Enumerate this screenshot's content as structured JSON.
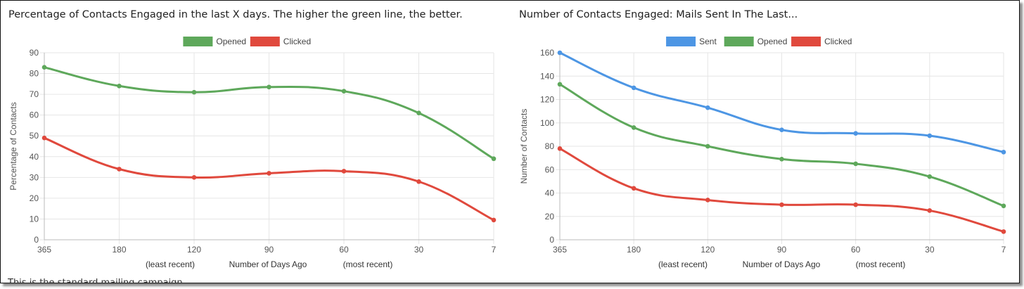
{
  "colors": {
    "sent": "#4d96e4",
    "opened": "#5ea85b",
    "clicked": "#e0493d",
    "grid": "#e6e6e6",
    "axis": "#444444"
  },
  "footnote": "This is the standard mailing campaign...",
  "chart_data": [
    {
      "type": "line",
      "title": "Percentage of Contacts Engaged in the last X days. The higher the green line, the better.",
      "categories": [
        "365",
        "180",
        "120",
        "90",
        "60",
        "30",
        "7"
      ],
      "ylabel": "Percentage of Contacts",
      "xlabel": "Number of Days Ago",
      "xlabel_left": "(least recent)",
      "xlabel_right": "(most recent)",
      "ylim": [
        0,
        90
      ],
      "ystep": 10,
      "grid": true,
      "legend_position": "top-center",
      "series": [
        {
          "name": "Opened",
          "color_key": "opened",
          "values": [
            83,
            74,
            71,
            73.5,
            71.5,
            61,
            39
          ]
        },
        {
          "name": "Clicked",
          "color_key": "clicked",
          "values": [
            49,
            34,
            30,
            32,
            33,
            28,
            9.5
          ]
        }
      ]
    },
    {
      "type": "line",
      "title": "Number of Contacts Engaged: Mails Sent In The Last...",
      "categories": [
        "365",
        "180",
        "120",
        "90",
        "60",
        "30",
        "7"
      ],
      "ylabel": "Number of Contacts",
      "xlabel": "Number of Days Ago",
      "xlabel_left": "(least recent)",
      "xlabel_right": "(most recent)",
      "ylim": [
        0,
        160
      ],
      "ystep": 20,
      "grid": true,
      "legend_position": "top-center",
      "series": [
        {
          "name": "Sent",
          "color_key": "sent",
          "values": [
            160,
            130,
            113,
            94,
            91,
            89,
            75
          ]
        },
        {
          "name": "Opened",
          "color_key": "opened",
          "values": [
            133,
            96,
            80,
            69,
            65,
            54,
            29
          ]
        },
        {
          "name": "Clicked",
          "color_key": "clicked",
          "values": [
            78,
            44,
            34,
            30,
            30,
            25,
            7
          ]
        }
      ]
    }
  ]
}
